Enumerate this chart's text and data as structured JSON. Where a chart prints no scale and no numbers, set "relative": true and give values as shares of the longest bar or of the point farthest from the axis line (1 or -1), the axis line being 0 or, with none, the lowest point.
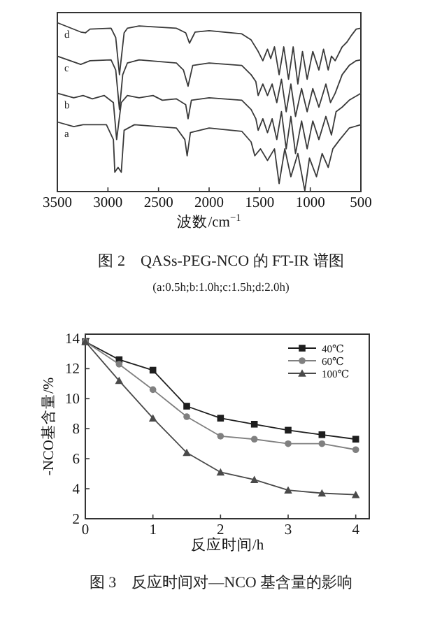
{
  "chart_data": [
    {
      "type": "line",
      "title": "图 2　QASs-PEG-NCO 的 FT-IR 谱图",
      "subtitle": "(a:0.5h;b:1.0h;c:1.5h;d:2.0h)",
      "xlabel": "波数/cm$^{−1}$",
      "relative": true,
      "xlim": [
        3500,
        500
      ],
      "xticks": [
        3500,
        3000,
        2500,
        2000,
        1500,
        1000,
        500
      ],
      "tick_labels": "x",
      "marker": "none",
      "series": [
        {
          "name": "a",
          "color": "#3a3a3a",
          "x": [
            3500,
            3338,
            3246,
            3015,
            2946,
            2932,
            2900,
            2868,
            2840,
            2738,
            2323,
            2240,
            2217,
            2185,
            2000,
            1677,
            1585,
            1548,
            1492,
            1423,
            1354,
            1308,
            1252,
            1192,
            1123,
            1054,
            1008,
            939,
            883,
            823,
            777,
            708,
            615,
            500
          ],
          "values": [
            0.412,
            0.385,
            0.396,
            0.396,
            0.308,
            0.115,
            0.143,
            0.115,
            0.363,
            0.396,
            0.376,
            0.308,
            0.212,
            0.349,
            0.376,
            0.357,
            0.294,
            0.212,
            0.253,
            0.184,
            0.253,
            0.047,
            0.253,
            0.088,
            0.225,
            0.005,
            0.198,
            0.088,
            0.225,
            0.143,
            0.253,
            0.308,
            0.376,
            0.396
          ]
        },
        {
          "name": "b",
          "color": "#3a3a3a",
          "x": [
            3500,
            3338,
            3246,
            3154,
            3038,
            2946,
            2914,
            2868,
            2808,
            2692,
            2554,
            2462,
            2323,
            2231,
            2208,
            2175,
            2000,
            1677,
            1585,
            1538,
            1515,
            1469,
            1423,
            1377,
            1331,
            1285,
            1238,
            1192,
            1146,
            1086,
            1031,
            975,
            915,
            846,
            791,
            745,
            685,
            615,
            500
          ],
          "values": [
            0.582,
            0.555,
            0.569,
            0.549,
            0.569,
            0.527,
            0.308,
            0.527,
            0.569,
            0.555,
            0.569,
            0.541,
            0.549,
            0.514,
            0.431,
            0.541,
            0.555,
            0.541,
            0.486,
            0.431,
            0.363,
            0.431,
            0.349,
            0.431,
            0.308,
            0.473,
            0.253,
            0.445,
            0.225,
            0.418,
            0.253,
            0.418,
            0.308,
            0.445,
            0.335,
            0.473,
            0.5,
            0.541,
            0.582
          ]
        },
        {
          "name": "c",
          "color": "#3a3a3a",
          "x": [
            3500,
            3269,
            3177,
            2969,
            2923,
            2886,
            2854,
            2808,
            2692,
            2323,
            2254,
            2208,
            2162,
            2000,
            1677,
            1585,
            1538,
            1515,
            1469,
            1423,
            1377,
            1331,
            1285,
            1238,
            1192,
            1146,
            1086,
            1031,
            975,
            915,
            846,
            800,
            754,
            685,
            615,
            546,
            500
          ],
          "values": [
            0.802,
            0.753,
            0.775,
            0.78,
            0.72,
            0.486,
            0.692,
            0.761,
            0.78,
            0.761,
            0.72,
            0.624,
            0.747,
            0.761,
            0.747,
            0.692,
            0.651,
            0.569,
            0.637,
            0.569,
            0.637,
            0.527,
            0.665,
            0.473,
            0.637,
            0.445,
            0.61,
            0.473,
            0.61,
            0.5,
            0.637,
            0.527,
            0.582,
            0.692,
            0.747,
            0.775,
            0.78
          ]
        },
        {
          "name": "d",
          "color": "#3a3a3a",
          "x": [
            3500,
            3269,
            3223,
            3177,
            2969,
            2923,
            2886,
            2840,
            2808,
            2692,
            2323,
            2231,
            2194,
            2138,
            2000,
            1677,
            1585,
            1515,
            1469,
            1423,
            1391,
            1354,
            1308,
            1262,
            1215,
            1169,
            1123,
            1077,
            1031,
            975,
            915,
            869,
            823,
            791,
            754,
            685,
            638,
            592,
            546,
            500
          ],
          "values": [
            1.0,
            0.945,
            0.94,
            0.962,
            0.967,
            0.912,
            0.692,
            0.94,
            0.967,
            0.981,
            0.967,
            0.94,
            0.879,
            0.945,
            0.953,
            0.934,
            0.898,
            0.83,
            0.775,
            0.843,
            0.788,
            0.857,
            0.692,
            0.857,
            0.665,
            0.857,
            0.637,
            0.83,
            0.665,
            0.83,
            0.72,
            0.843,
            0.72,
            0.802,
            0.775,
            0.857,
            0.885,
            0.926,
            0.962,
            0.967
          ]
        }
      ]
    },
    {
      "type": "line",
      "title": "图 3　反应时间对—NCO 基含量的影响",
      "xlabel": "反应时间/h",
      "ylabel": "-NCO基含量/%",
      "xlim": [
        0,
        4.2
      ],
      "xticks": [
        0,
        1,
        2,
        3,
        4
      ],
      "ylim": [
        2,
        14.3
      ],
      "yticks": [
        2,
        4,
        6,
        8,
        10,
        12,
        14
      ],
      "legend": "top right",
      "x": [
        0,
        0.5,
        1,
        1.5,
        2,
        2.5,
        3,
        3.5,
        4
      ],
      "series": [
        {
          "name": "40℃",
          "color": "#1e1e1e",
          "marker": "square",
          "values": [
            13.8,
            12.6,
            11.9,
            9.5,
            8.7,
            8.3,
            7.9,
            7.6,
            7.3
          ]
        },
        {
          "name": "60℃",
          "color": "#808080",
          "marker": "circle",
          "values": [
            13.8,
            12.3,
            10.6,
            8.8,
            7.5,
            7.3,
            7.0,
            7.0,
            6.6
          ]
        },
        {
          "name": "100℃",
          "color": "#4a4a4a",
          "marker": "triangle",
          "values": [
            13.8,
            11.2,
            8.7,
            6.4,
            5.1,
            4.6,
            3.9,
            3.7,
            3.6
          ]
        }
      ]
    }
  ]
}
